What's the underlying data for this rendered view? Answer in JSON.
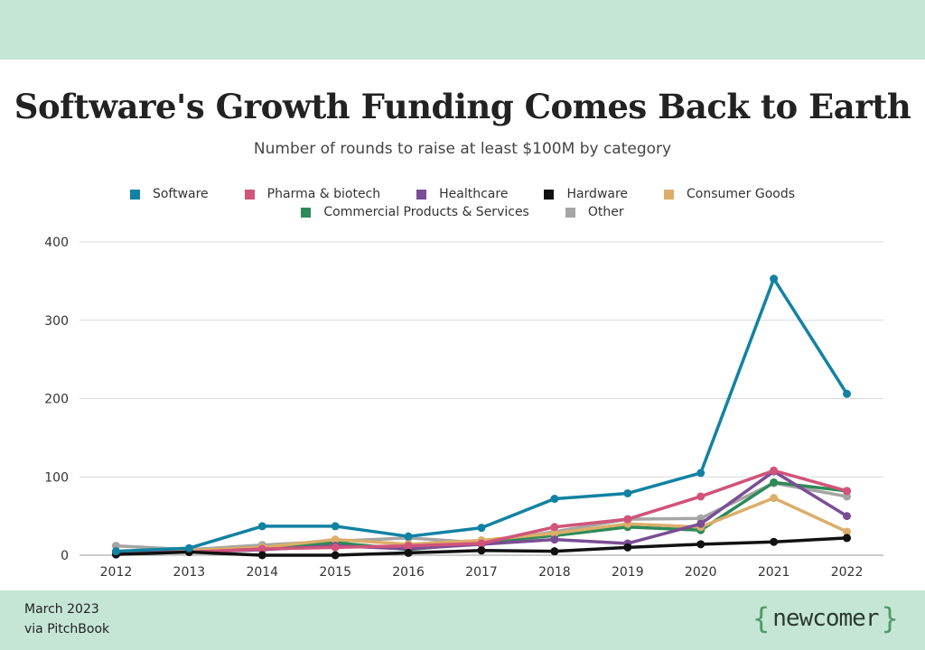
{
  "header": {
    "title": "Software's Growth Funding Comes Back to Earth",
    "subtitle": "Number of rounds to raise at least $100M by category"
  },
  "footer": {
    "date": "March 2023",
    "source": "via PitchBook",
    "logo_text": "newcomer"
  },
  "chart_data": {
    "type": "line",
    "title": "Software's Growth Funding Comes Back to Earth",
    "subtitle": "Number of rounds to raise at least $100M by category",
    "xlabel": "",
    "ylabel": "",
    "x": [
      "2012",
      "2013",
      "2014",
      "2015",
      "2016",
      "2017",
      "2018",
      "2019",
      "2020",
      "2021",
      "2022"
    ],
    "ylim": [
      0,
      400
    ],
    "yticks": [
      "0",
      "100",
      "200",
      "300",
      "400"
    ],
    "grid": true,
    "legend_position": "top",
    "series": [
      {
        "name": "Software",
        "color": "#1282a2",
        "values": [
          5,
          9,
          37,
          37,
          24,
          35,
          72,
          79,
          105,
          353,
          206
        ]
      },
      {
        "name": "Pharma & biotech",
        "color": "#d1547a",
        "values": [
          2,
          4,
          8,
          10,
          12,
          15,
          36,
          46,
          75,
          108,
          82
        ]
      },
      {
        "name": "Healthcare",
        "color": "#7b4e94",
        "values": [
          3,
          4,
          7,
          12,
          8,
          14,
          20,
          15,
          40,
          107,
          50
        ]
      },
      {
        "name": "Hardware",
        "color": "#111111",
        "values": [
          1,
          4,
          0,
          0,
          3,
          6,
          5,
          10,
          14,
          17,
          22
        ]
      },
      {
        "name": "Consumer Goods",
        "color": "#dcae6a",
        "values": [
          3,
          6,
          10,
          20,
          14,
          19,
          28,
          40,
          36,
          73,
          30
        ]
      },
      {
        "name": "Commercial Products & Services",
        "color": "#2d8a58",
        "values": [
          4,
          5,
          9,
          16,
          7,
          16,
          25,
          36,
          32,
          93,
          82
        ]
      },
      {
        "name": "Other",
        "color": "#a5a5a5",
        "values": [
          12,
          7,
          13,
          18,
          22,
          16,
          30,
          46,
          47,
          92,
          75
        ]
      }
    ]
  }
}
